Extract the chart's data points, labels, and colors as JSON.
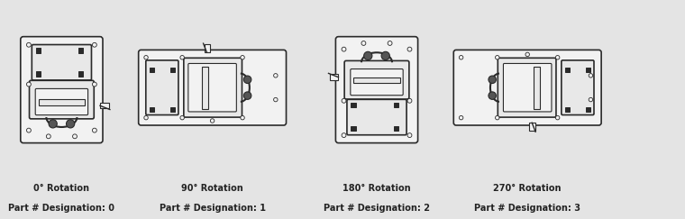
{
  "background_color": "#e4e4e4",
  "line_color": "#2a2a2a",
  "body_fill": "#f2f2f2",
  "inner_fill": "#e8e8e8",
  "dark_fill": "#555555",
  "labels": [
    {
      "rotation_text": "0° Rotation",
      "designation_text": "Part # Designation: 0"
    },
    {
      "rotation_text": "90° Rotation",
      "designation_text": "Part # Designation: 1"
    },
    {
      "rotation_text": "180° Rotation",
      "designation_text": "Part # Designation: 2"
    },
    {
      "rotation_text": "270° Rotation",
      "designation_text": "Part # Designation: 3"
    }
  ],
  "rotations": [
    0,
    90,
    180,
    270
  ],
  "label_fontsize": 7.0
}
